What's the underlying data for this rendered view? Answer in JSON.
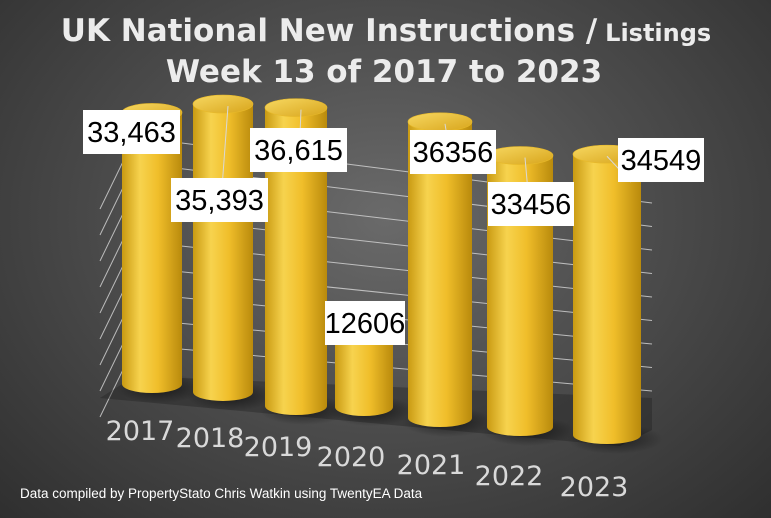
{
  "chart_data": {
    "type": "bar",
    "title_main": "UK National New Instructions /",
    "title_small": "Listings",
    "subtitle": "Week 13 of 2017 to 2023",
    "categories": [
      "2017",
      "2018",
      "2019",
      "2020",
      "2021",
      "2022",
      "2023"
    ],
    "values": [
      33463,
      35393,
      36615,
      12606,
      36356,
      33456,
      34549
    ],
    "data_labels": [
      "33,463",
      "35,393",
      "36,615",
      "12606",
      "36356",
      "33456",
      "34549"
    ],
    "bar_color": "#F2C12E",
    "grid": true,
    "three_d": true
  },
  "footer": "Data compiled by PropertyStato Chris Watkin using TwentyEA Data"
}
